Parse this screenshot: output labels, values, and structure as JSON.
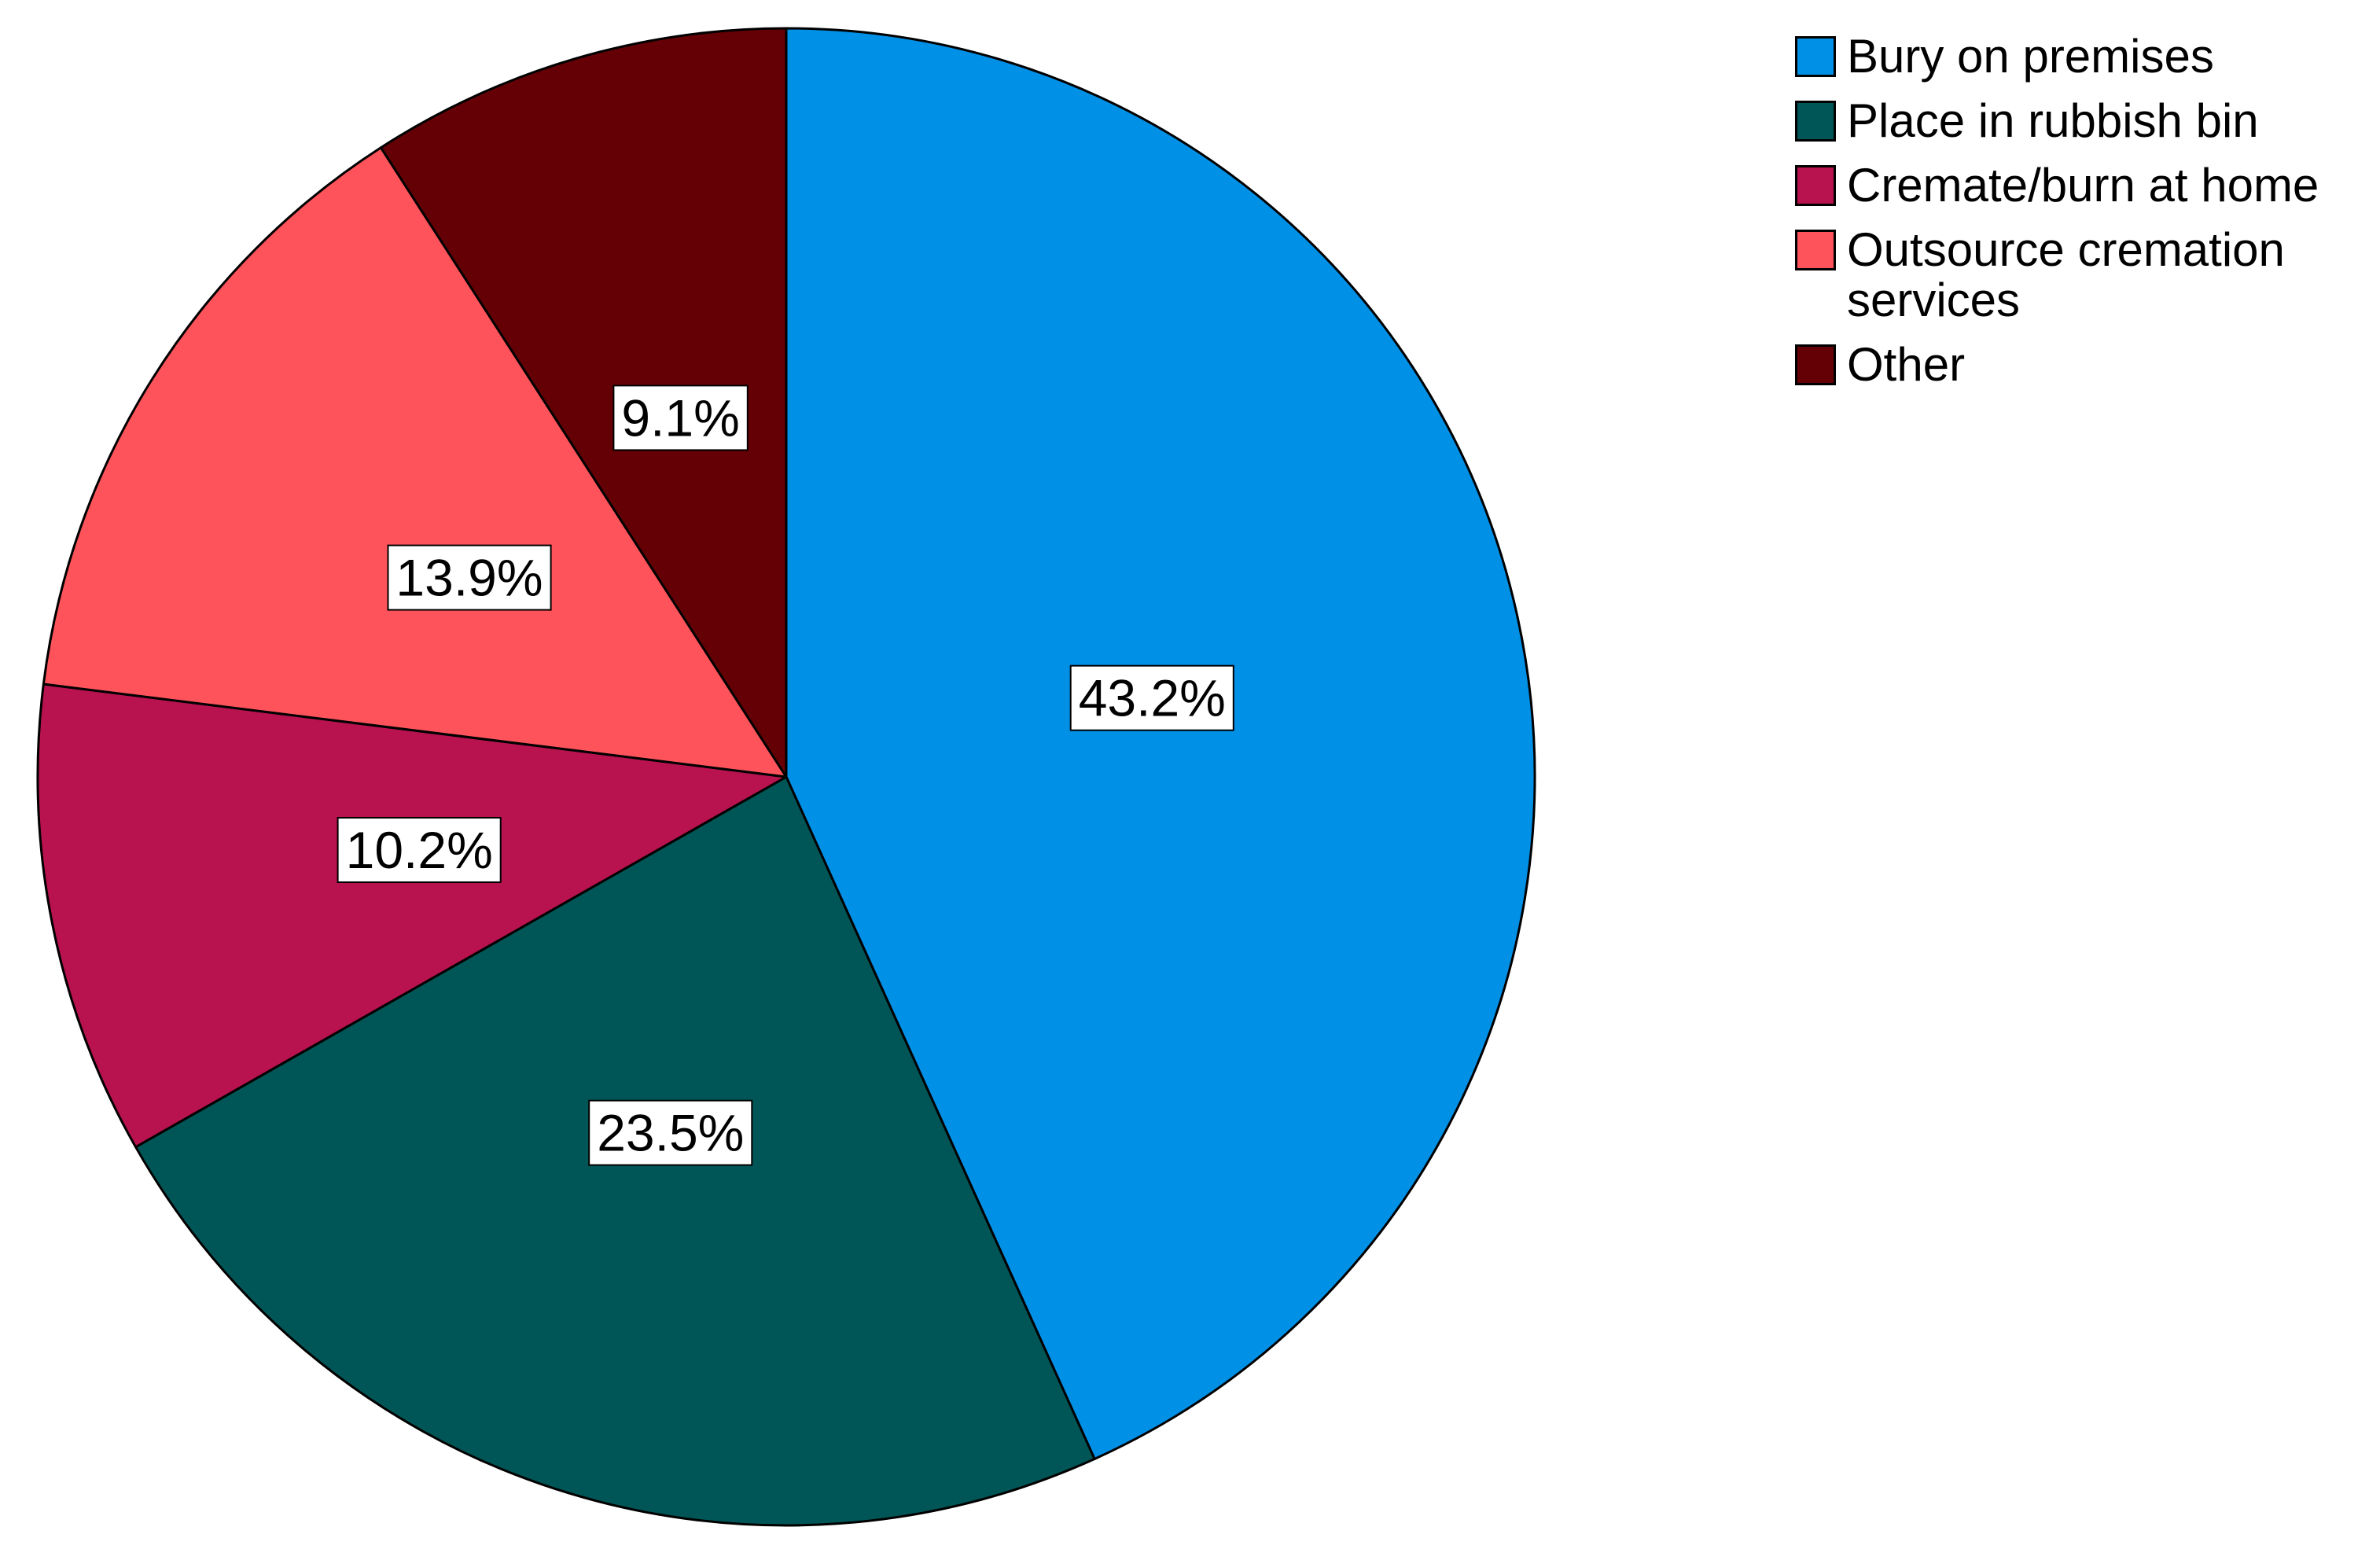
{
  "chart_data": {
    "type": "pie",
    "title": "",
    "slices": [
      {
        "label": "Bury on premises",
        "value": 43.2,
        "value_label": "43.2%",
        "color": "#0090E6"
      },
      {
        "label": "Place in rubbish bin",
        "value": 23.5,
        "value_label": "23.5%",
        "color": "#005657"
      },
      {
        "label": "Cremate/burn at home",
        "value": 10.2,
        "value_label": "10.2%",
        "color": "#B8124F"
      },
      {
        "label": "Outsource cremation services",
        "value": 13.9,
        "value_label": "13.9%",
        "color": "#FE535B"
      },
      {
        "label": "Other",
        "value": 9.1,
        "value_label": "9.1%",
        "color": "#640005"
      }
    ],
    "start_angle_deg": 0,
    "direction": "clockwise",
    "legend_position": "top-right",
    "slice_outline_color": "#000000"
  }
}
